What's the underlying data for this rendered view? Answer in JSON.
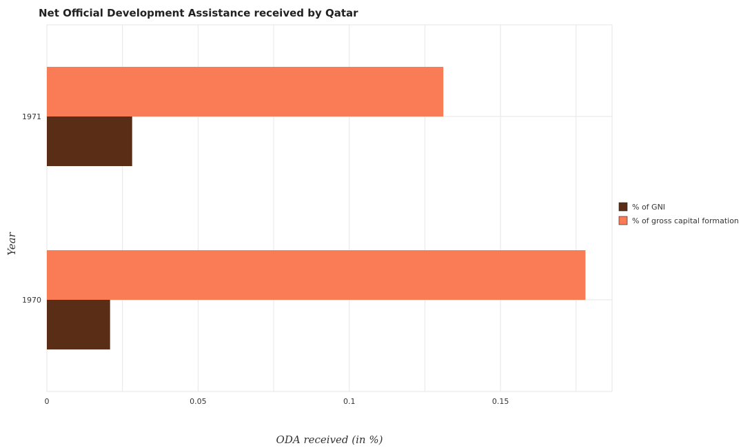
{
  "chart_data": {
    "type": "bar",
    "orientation": "horizontal",
    "title": "Net Official Development Assistance received by Qatar",
    "xlabel": "ODA received (in %)",
    "ylabel": "Year",
    "categories": [
      "1970",
      "1971"
    ],
    "series": [
      {
        "name": "% of GNI",
        "color": "#5a2d16",
        "values": [
          0.0209,
          0.0282
        ]
      },
      {
        "name": "% of gross capital formation",
        "color": "#f97c56",
        "values": [
          0.1781,
          0.1311
        ]
      }
    ],
    "xlim": [
      0,
      0.1869
    ],
    "xticks": [
      0,
      0.05,
      0.1,
      0.15
    ],
    "xtick_labels": [
      "0",
      "0.05",
      "0.1",
      "0.15"
    ],
    "grid": true,
    "legend_position": "right"
  }
}
